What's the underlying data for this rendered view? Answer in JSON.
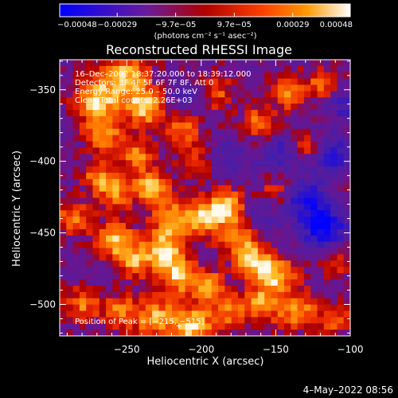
{
  "chart_data": {
    "type": "heatmap",
    "title": "Reconstructed RHESSI Image",
    "xlabel": "Heliocentric X (arcsec)",
    "ylabel": "Heliocentric Y (arcsec)",
    "xlim": [
      -295,
      -100
    ],
    "ylim": [
      -522,
      -329
    ],
    "x_ticks": [
      -250,
      -200,
      -150,
      -100
    ],
    "x_tick_labels": [
      "−250",
      "−200",
      "−150",
      "−100"
    ],
    "y_ticks": [
      -350,
      -400,
      -450,
      -500
    ],
    "y_tick_labels": [
      "−350",
      "−400",
      "−450",
      "−500"
    ],
    "grid": false,
    "colorbar": {
      "range": [
        -0.00048,
        0.00048
      ],
      "tick_values": [
        -0.00048,
        -0.00029,
        -9.7e-05,
        9.7e-05,
        0.00029,
        0.00048
      ],
      "tick_labels": [
        "−0.00048",
        "−0.00029",
        "−9.7e−05",
        "9.7e−05",
        "0.00029",
        "0.00048"
      ],
      "unit_label": "(photons cm⁻² s⁻¹ asec⁻²)",
      "colors": [
        "#0000ff",
        "#6a1b9a",
        "#b00000",
        "#ff4000",
        "#ff9900",
        "#ffffff"
      ]
    },
    "annotations": [
      "16–Dec–2002 18:37:20.000 to 18:39:12.000",
      "Detectors: 3F 4F 5F 6F 7F 8F, Att 0",
      "Energy Range: 25.0 – 50.0 keV",
      "Clean     Total counts: 2.26E+03"
    ],
    "peak_label": "Position of Peak = [−215, −515]",
    "peak": [
      -215,
      -515
    ],
    "image": {
      "cols": 44,
      "rows": 44,
      "hotspots": [
        [
          -270,
          -356,
          10,
          0.95
        ],
        [
          -265,
          -380,
          9,
          0.75
        ],
        [
          -250,
          -340,
          10,
          0.85
        ],
        [
          -238,
          -362,
          9,
          0.95
        ],
        [
          -243,
          -395,
          8,
          0.65
        ],
        [
          -258,
          -420,
          9,
          0.7
        ],
        [
          -233,
          -418,
          8,
          0.9
        ],
        [
          -220,
          -440,
          9,
          0.75
        ],
        [
          -200,
          -440,
          9,
          0.8
        ],
        [
          -183,
          -432,
          8,
          0.95
        ],
        [
          -175,
          -454,
          9,
          0.7
        ],
        [
          -165,
          -470,
          8,
          0.8
        ],
        [
          -150,
          -480,
          9,
          0.9
        ],
        [
          -258,
          -455,
          9,
          0.85
        ],
        [
          -245,
          -470,
          8,
          0.7
        ],
        [
          -225,
          -462,
          9,
          0.95
        ],
        [
          -215,
          -480,
          9,
          0.85
        ],
        [
          -195,
          -488,
          8,
          0.75
        ],
        [
          -230,
          -510,
          10,
          0.8
        ],
        [
          -205,
          -515,
          9,
          0.95
        ],
        [
          -255,
          -505,
          8,
          0.65
        ],
        [
          -182,
          -505,
          8,
          0.6
        ],
        [
          -160,
          -500,
          9,
          0.7
        ],
        [
          -135,
          -505,
          9,
          0.75
        ],
        [
          -140,
          -352,
          8,
          0.7
        ],
        [
          -118,
          -346,
          7,
          0.6
        ],
        [
          -162,
          -372,
          8,
          0.55
        ],
        [
          -190,
          -352,
          8,
          0.5
        ],
        [
          -212,
          -378,
          8,
          0.6
        ],
        [
          -205,
          -400,
          7,
          0.45
        ],
        [
          -280,
          -500,
          8,
          0.6
        ],
        [
          -286,
          -440,
          8,
          0.65
        ],
        [
          -270,
          -410,
          7,
          0.55
        ],
        [
          -150,
          -420,
          7,
          0.4
        ],
        [
          -108,
          -470,
          7,
          0.5
        ],
        [
          -110,
          -510,
          7,
          0.55
        ],
        [
          -128,
          -390,
          7,
          0.45
        ]
      ],
      "coldspots": [
        [
          -118,
          -445,
          11,
          0.9
        ],
        [
          -130,
          -425,
          10,
          0.6
        ],
        [
          -112,
          -395,
          9,
          0.7
        ],
        [
          -148,
          -395,
          9,
          0.45
        ],
        [
          -180,
          -398,
          8,
          0.4
        ],
        [
          -160,
          -440,
          8,
          0.35
        ],
        [
          -210,
          -355,
          8,
          0.35
        ],
        [
          -105,
          -360,
          8,
          0.45
        ]
      ]
    }
  },
  "footer": {
    "timestamp": "4–May–2022 08:56"
  }
}
